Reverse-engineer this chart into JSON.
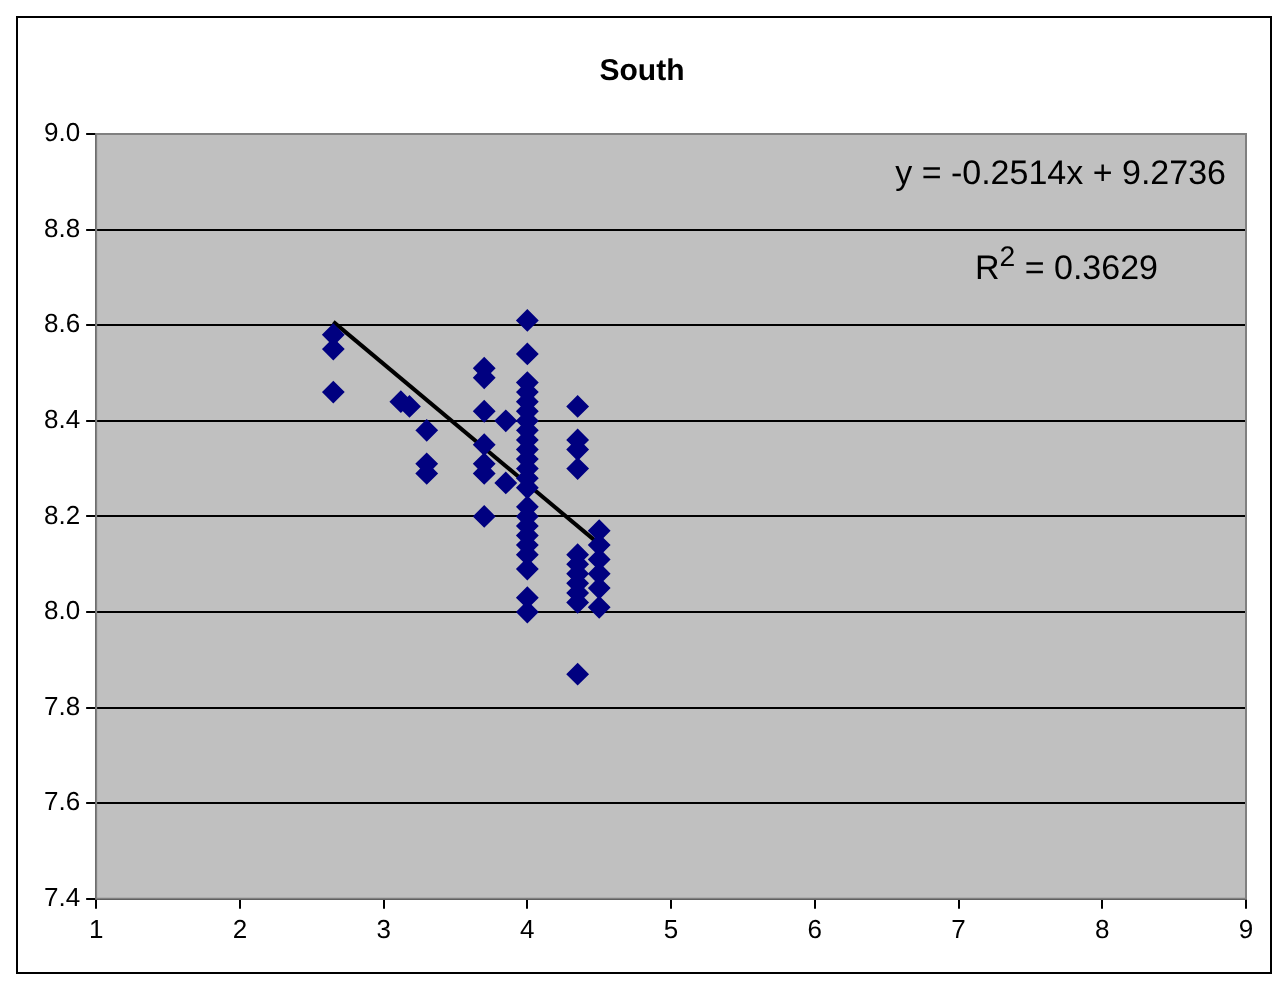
{
  "chart_data": {
    "type": "scatter",
    "title": "South",
    "annotations": [
      "y = -0.2514x + 9.2736",
      "R$^{2}$ = 0.3629"
    ],
    "series": [
      {
        "type": "scatter",
        "color": "#000080",
        "marker": "diamond",
        "x": [
          2.65,
          2.65,
          2.65,
          3.12,
          3.18,
          3.3,
          3.3,
          3.3,
          3.7,
          3.7,
          3.7,
          3.7,
          3.7,
          3.7,
          3.7,
          3.85,
          3.85,
          4,
          4,
          4,
          4,
          4,
          4,
          4,
          4,
          4,
          4,
          4,
          4,
          4,
          4,
          4,
          4,
          4,
          4,
          4,
          4,
          4,
          4,
          4,
          4.35,
          4.35,
          4.35,
          4.35,
          4.35,
          4.35,
          4.35,
          4.35,
          4.35,
          4.35,
          4.35,
          4.5,
          4.5,
          4.5,
          4.5,
          4.5,
          4.5
        ],
        "values": [
          8.58,
          8.55,
          8.46,
          8.44,
          8.43,
          8.38,
          8.31,
          8.29,
          8.51,
          8.49,
          8.42,
          8.35,
          8.31,
          8.29,
          8.2,
          8.4,
          8.27,
          8.61,
          8.54,
          8.48,
          8.46,
          8.44,
          8.42,
          8.4,
          8.38,
          8.36,
          8.34,
          8.32,
          8.3,
          8.28,
          8.26,
          8.22,
          8.2,
          8.18,
          8.16,
          8.14,
          8.12,
          8.09,
          8.03,
          8,
          8.43,
          8.36,
          8.34,
          8.3,
          8.12,
          8.1,
          8.08,
          8.06,
          8.04,
          8.02,
          7.87,
          8.17,
          8.14,
          8.11,
          8.08,
          8.05,
          8.01
        ]
      },
      {
        "type": "line",
        "color": "#000000",
        "marker": "none",
        "line_style": "solid",
        "x": [
          2.65,
          4.5
        ],
        "values": [
          8.607,
          8.142
        ]
      }
    ],
    "xlim": [
      1,
      9
    ],
    "xticks": [
      1,
      2,
      3,
      4,
      5,
      6,
      7,
      8,
      9
    ],
    "ylim": [
      7.4,
      9.0
    ],
    "yticks": [
      {
        "value": 7.4,
        "label": "7.4"
      },
      {
        "value": 7.6,
        "label": "7.6"
      },
      {
        "value": 7.8,
        "label": "7.8"
      },
      {
        "value": 8.0,
        "label": "8.0"
      },
      {
        "value": 8.2,
        "label": "8.2"
      },
      {
        "value": 8.4,
        "label": "8.4"
      },
      {
        "value": 8.6,
        "label": "8.6"
      },
      {
        "value": 8.8,
        "label": "8.8"
      },
      {
        "value": 9.0,
        "label": "9.0"
      }
    ],
    "grid": "y",
    "legend": false
  }
}
